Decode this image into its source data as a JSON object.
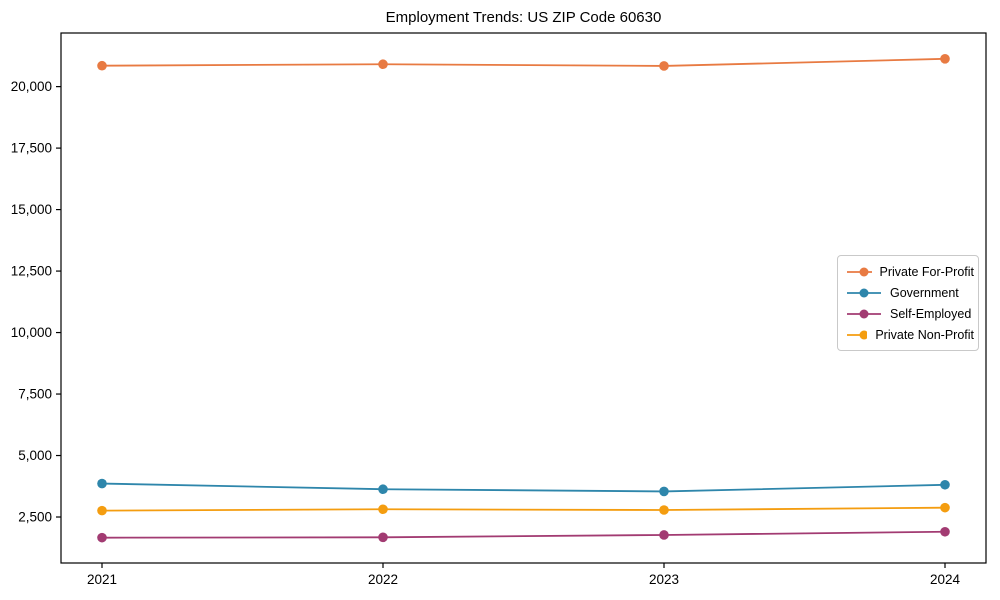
{
  "chart_data": {
    "type": "line",
    "title": "Employment Trends: US ZIP Code 60630",
    "categories": [
      "2021",
      "2022",
      "2023",
      "2024"
    ],
    "series": [
      {
        "name": "Private For-Profit",
        "color": "#E87A42",
        "values": [
          20850,
          20910,
          20840,
          21130
        ]
      },
      {
        "name": "Government",
        "color": "#2E86AB",
        "values": [
          3860,
          3630,
          3540,
          3810
        ]
      },
      {
        "name": "Self-Employed",
        "color": "#A23B72",
        "values": [
          1660,
          1675,
          1770,
          1900
        ]
      },
      {
        "name": "Private Non-Profit",
        "color": "#F49D10",
        "values": [
          2760,
          2815,
          2785,
          2880
        ]
      }
    ],
    "xlabel": "",
    "ylabel": "",
    "ylim": [
      630,
      22180
    ],
    "yticks": [
      2500,
      5000,
      7500,
      10000,
      12500,
      15000,
      17500,
      20000
    ],
    "grid": false,
    "legend_position": "center-right",
    "marker": "circle"
  }
}
